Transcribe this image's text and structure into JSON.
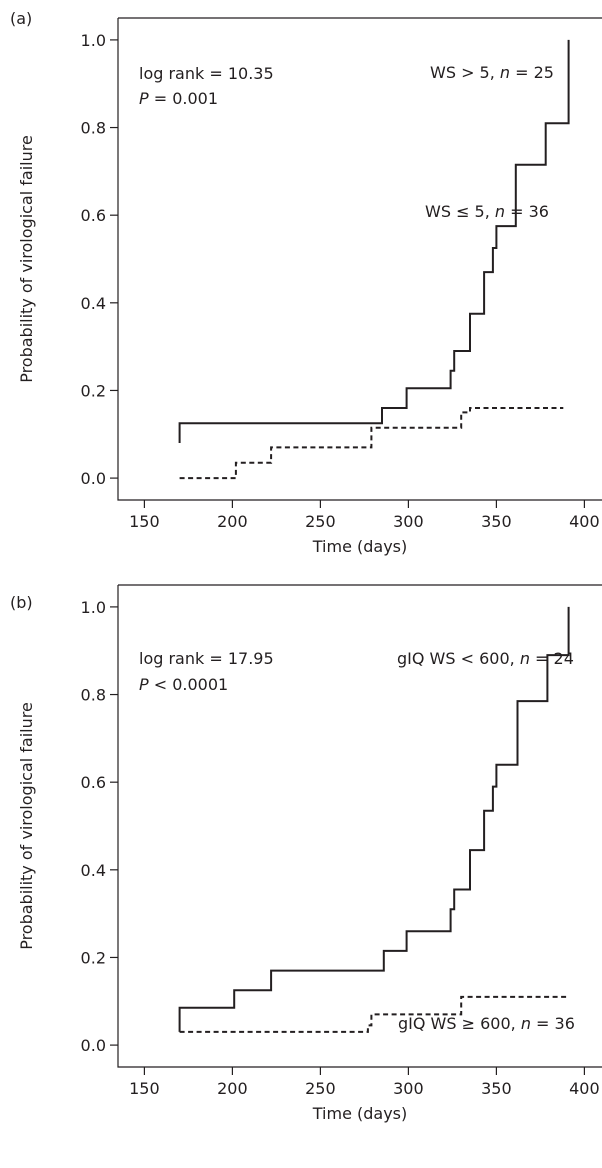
{
  "chart_data": [
    {
      "type": "line",
      "panel_label": "(a)",
      "xlabel": "Time (days)",
      "ylabel": "Probability of virological failure",
      "xlim": [
        135,
        410
      ],
      "ylim": [
        -0.05,
        1.05
      ],
      "xticks": [
        150,
        200,
        250,
        300,
        350,
        400
      ],
      "yticks": [
        0.0,
        0.2,
        0.4,
        0.6,
        0.8,
        1.0
      ],
      "xtick_labels": [
        "150",
        "200",
        "250",
        "300",
        "350",
        "400"
      ],
      "ytick_labels": [
        "0.0",
        "0.2",
        "0.4",
        "0.6",
        "0.8",
        "1.0"
      ],
      "stat_line1": "log rank = 10.35",
      "stat_line2_italic": "P",
      "stat_line2_rest": " = 0.001",
      "legend": "none",
      "series": [
        {
          "label_pre": "WS > 5, ",
          "label_italic": "n",
          "label_post": " = 25",
          "style": "solid",
          "points": [
            [
              170,
              0.08
            ],
            [
              170,
              0.125
            ],
            [
              285,
              0.125
            ],
            [
              285,
              0.16
            ],
            [
              299,
              0.16
            ],
            [
              299,
              0.205
            ],
            [
              324,
              0.205
            ],
            [
              324,
              0.245
            ],
            [
              326,
              0.245
            ],
            [
              326,
              0.29
            ],
            [
              335,
              0.29
            ],
            [
              335,
              0.375
            ],
            [
              343,
              0.375
            ],
            [
              343,
              0.47
            ],
            [
              348,
              0.47
            ],
            [
              348,
              0.525
            ],
            [
              350,
              0.525
            ],
            [
              350,
              0.575
            ],
            [
              361,
              0.575
            ],
            [
              361,
              0.715
            ],
            [
              378,
              0.715
            ],
            [
              378,
              0.81
            ],
            [
              391,
              0.81
            ],
            [
              391,
              1.0
            ]
          ]
        },
        {
          "label_pre": "WS ≤ 5, ",
          "label_italic": "n",
          "label_post": " = 36",
          "style": "dashed",
          "points": [
            [
              170,
              0.0
            ],
            [
              202,
              0.0
            ],
            [
              202,
              0.035
            ],
            [
              222,
              0.035
            ],
            [
              222,
              0.07
            ],
            [
              279,
              0.07
            ],
            [
              279,
              0.115
            ],
            [
              330,
              0.115
            ],
            [
              330,
              0.15
            ],
            [
              335,
              0.15
            ],
            [
              335,
              0.16
            ],
            [
              388,
              0.16
            ]
          ]
        }
      ]
    },
    {
      "type": "line",
      "panel_label": "(b)",
      "xlabel": "Time (days)",
      "ylabel": "Probability of virological failure",
      "xlim": [
        135,
        410
      ],
      "ylim": [
        -0.05,
        1.05
      ],
      "xticks": [
        150,
        200,
        250,
        300,
        350,
        400
      ],
      "yticks": [
        0.0,
        0.2,
        0.4,
        0.6,
        0.8,
        1.0
      ],
      "xtick_labels": [
        "150",
        "200",
        "250",
        "300",
        "350",
        "400"
      ],
      "ytick_labels": [
        "0.0",
        "0.2",
        "0.4",
        "0.6",
        "0.8",
        "1.0"
      ],
      "stat_line1": "log rank = 17.95",
      "stat_line2_italic": "P",
      "stat_line2_rest": " < 0.0001",
      "legend": "none",
      "series": [
        {
          "label_pre": "gIQ WS < 600, ",
          "label_italic": "n",
          "label_post": " = 24",
          "style": "solid",
          "points": [
            [
              170,
              0.03
            ],
            [
              170,
              0.085
            ],
            [
              201,
              0.085
            ],
            [
              201,
              0.125
            ],
            [
              222,
              0.125
            ],
            [
              222,
              0.17
            ],
            [
              286,
              0.17
            ],
            [
              286,
              0.215
            ],
            [
              299,
              0.215
            ],
            [
              299,
              0.26
            ],
            [
              324,
              0.26
            ],
            [
              324,
              0.31
            ],
            [
              326,
              0.31
            ],
            [
              326,
              0.355
            ],
            [
              335,
              0.355
            ],
            [
              335,
              0.445
            ],
            [
              343,
              0.445
            ],
            [
              343,
              0.535
            ],
            [
              348,
              0.535
            ],
            [
              348,
              0.59
            ],
            [
              350,
              0.59
            ],
            [
              350,
              0.64
            ],
            [
              362,
              0.64
            ],
            [
              362,
              0.785
            ],
            [
              379,
              0.785
            ],
            [
              379,
              0.89
            ],
            [
              391,
              0.89
            ],
            [
              391,
              1.0
            ]
          ]
        },
        {
          "label_pre": "gIQ WS ≥ 600, ",
          "label_italic": "n",
          "label_post": " = 36",
          "style": "dashed",
          "points": [
            [
              170,
              0.03
            ],
            [
              277,
              0.03
            ],
            [
              277,
              0.045
            ],
            [
              279,
              0.045
            ],
            [
              279,
              0.07
            ],
            [
              330,
              0.07
            ],
            [
              330,
              0.11
            ],
            [
              391,
              0.11
            ]
          ]
        }
      ]
    }
  ]
}
